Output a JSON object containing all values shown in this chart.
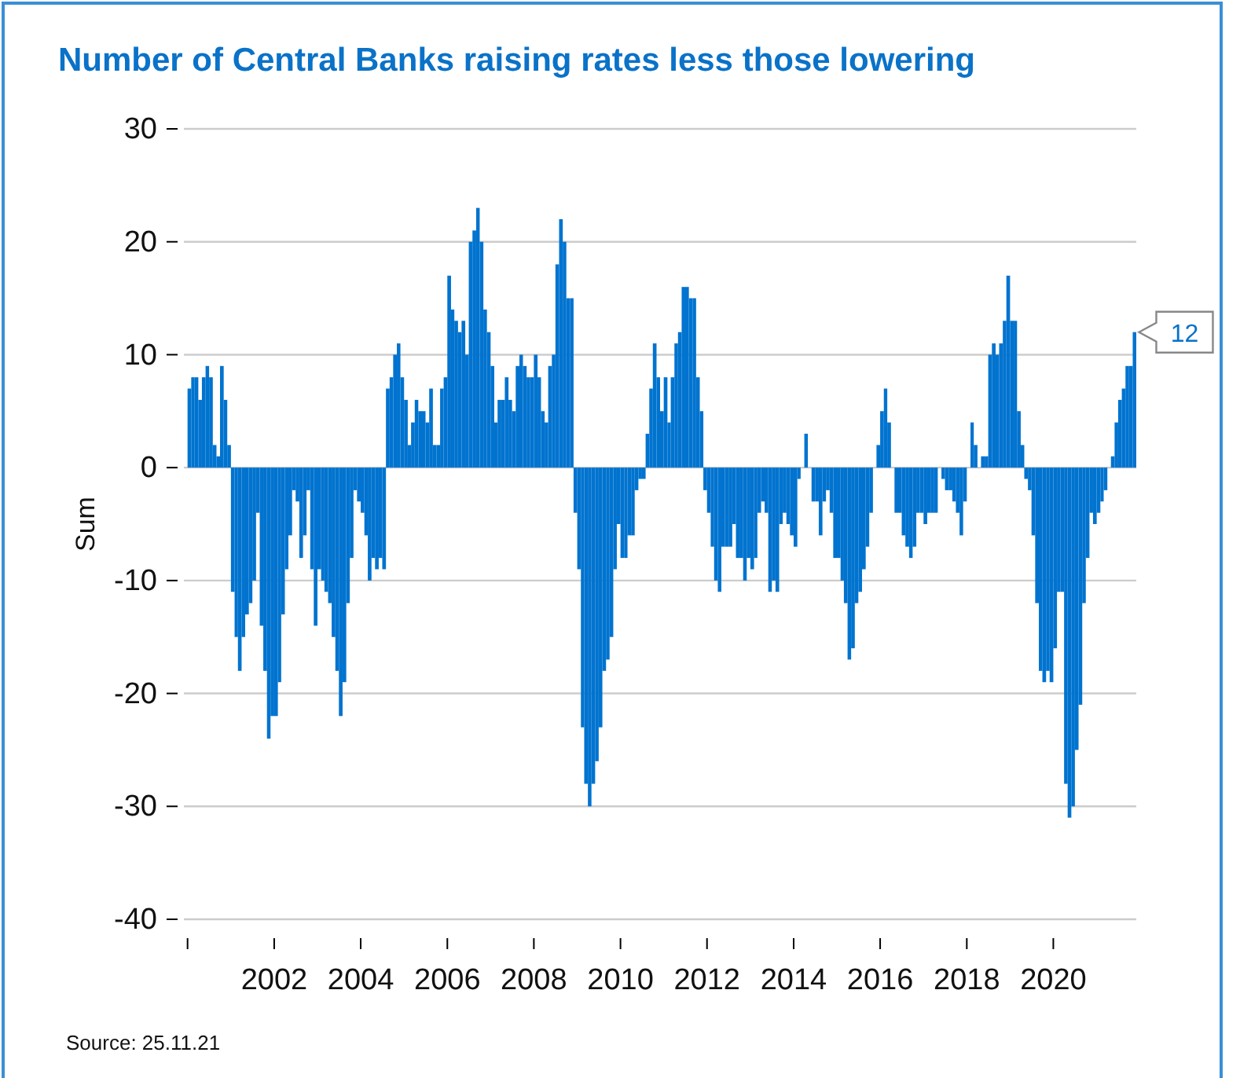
{
  "chart_data": {
    "type": "bar",
    "title": "Number of Central Banks raising rates less those lowering",
    "ylabel": "Sum",
    "annotations": [
      {
        "text": "12",
        "x": "2021-11",
        "y": 12
      },
      "Source: 25.11.21"
    ],
    "x": [
      "2000-01",
      "2000-02",
      "2000-03",
      "2000-04",
      "2000-05",
      "2000-06",
      "2000-07",
      "2000-08",
      "2000-09",
      "2000-10",
      "2000-11",
      "2000-12",
      "2001-01",
      "2001-02",
      "2001-03",
      "2001-04",
      "2001-05",
      "2001-06",
      "2001-07",
      "2001-08",
      "2001-09",
      "2001-10",
      "2001-11",
      "2001-12",
      "2002-01",
      "2002-02",
      "2002-03",
      "2002-04",
      "2002-05",
      "2002-06",
      "2002-07",
      "2002-08",
      "2002-09",
      "2002-10",
      "2002-11",
      "2002-12",
      "2003-01",
      "2003-02",
      "2003-03",
      "2003-04",
      "2003-05",
      "2003-06",
      "2003-07",
      "2003-08",
      "2003-09",
      "2003-10",
      "2003-11",
      "2003-12",
      "2004-01",
      "2004-02",
      "2004-03",
      "2004-04",
      "2004-05",
      "2004-06",
      "2004-07",
      "2004-08",
      "2004-09",
      "2004-10",
      "2004-11",
      "2004-12",
      "2005-01",
      "2005-02",
      "2005-03",
      "2005-04",
      "2005-05",
      "2005-06",
      "2005-07",
      "2005-08",
      "2005-09",
      "2005-10",
      "2005-11",
      "2005-12",
      "2006-01",
      "2006-02",
      "2006-03",
      "2006-04",
      "2006-05",
      "2006-06",
      "2006-07",
      "2006-08",
      "2006-09",
      "2006-10",
      "2006-11",
      "2006-12",
      "2007-01",
      "2007-02",
      "2007-03",
      "2007-04",
      "2007-05",
      "2007-06",
      "2007-07",
      "2007-08",
      "2007-09",
      "2007-10",
      "2007-11",
      "2007-12",
      "2008-01",
      "2008-02",
      "2008-03",
      "2008-04",
      "2008-05",
      "2008-06",
      "2008-07",
      "2008-08",
      "2008-09",
      "2008-10",
      "2008-11",
      "2008-12",
      "2009-01",
      "2009-02",
      "2009-03",
      "2009-04",
      "2009-05",
      "2009-06",
      "2009-07",
      "2009-08",
      "2009-09",
      "2009-10",
      "2009-11",
      "2009-12",
      "2010-01",
      "2010-02",
      "2010-03",
      "2010-04",
      "2010-05",
      "2010-06",
      "2010-07",
      "2010-08",
      "2010-09",
      "2010-10",
      "2010-11",
      "2010-12",
      "2011-01",
      "2011-02",
      "2011-03",
      "2011-04",
      "2011-05",
      "2011-06",
      "2011-07",
      "2011-08",
      "2011-09",
      "2011-10",
      "2011-11",
      "2011-12",
      "2012-01",
      "2012-02",
      "2012-03",
      "2012-04",
      "2012-05",
      "2012-06",
      "2012-07",
      "2012-08",
      "2012-09",
      "2012-10",
      "2012-11",
      "2012-12",
      "2013-01",
      "2013-02",
      "2013-03",
      "2013-04",
      "2013-05",
      "2013-06",
      "2013-07",
      "2013-08",
      "2013-09",
      "2013-10",
      "2013-11",
      "2013-12",
      "2014-01",
      "2014-02",
      "2014-03",
      "2014-04",
      "2014-05",
      "2014-06",
      "2014-07",
      "2014-08",
      "2014-09",
      "2014-10",
      "2014-11",
      "2014-12",
      "2015-01",
      "2015-02",
      "2015-03",
      "2015-04",
      "2015-05",
      "2015-06",
      "2015-07",
      "2015-08",
      "2015-09",
      "2015-10",
      "2015-11",
      "2015-12",
      "2016-01",
      "2016-02",
      "2016-03",
      "2016-04",
      "2016-05",
      "2016-06",
      "2016-07",
      "2016-08",
      "2016-09",
      "2016-10",
      "2016-11",
      "2016-12",
      "2017-01",
      "2017-02",
      "2017-03",
      "2017-04",
      "2017-05",
      "2017-06",
      "2017-07",
      "2017-08",
      "2017-09",
      "2017-10",
      "2017-11",
      "2017-12",
      "2018-01",
      "2018-02",
      "2018-03",
      "2018-04",
      "2018-05",
      "2018-06",
      "2018-07",
      "2018-08",
      "2018-09",
      "2018-10",
      "2018-11",
      "2018-12",
      "2019-01",
      "2019-02",
      "2019-03",
      "2019-04",
      "2019-05",
      "2019-06",
      "2019-07",
      "2019-08",
      "2019-09",
      "2019-10",
      "2019-11",
      "2019-12",
      "2020-01",
      "2020-02",
      "2020-03",
      "2020-04",
      "2020-05",
      "2020-06",
      "2020-07",
      "2020-08",
      "2020-09",
      "2020-10",
      "2020-11",
      "2020-12",
      "2021-01",
      "2021-02",
      "2021-03",
      "2021-04",
      "2021-05",
      "2021-06",
      "2021-07",
      "2021-08",
      "2021-09",
      "2021-10",
      "2021-11"
    ],
    "color": "#0073cf",
    "values": [
      7,
      8,
      8,
      6,
      8,
      9,
      8,
      2,
      1,
      9,
      6,
      2,
      -11,
      -15,
      -18,
      -15,
      -13,
      -12,
      -10,
      -4,
      -14,
      -18,
      -24,
      -22,
      -22,
      -19,
      -13,
      -9,
      -6,
      -2,
      -3,
      -8,
      -6,
      -2,
      -9,
      -14,
      -9,
      -10,
      -11,
      -12,
      -15,
      -18,
      -22,
      -19,
      -12,
      -8,
      -2,
      -3,
      -4,
      -6,
      -10,
      -8,
      -9,
      -8,
      -9,
      7,
      8,
      10,
      11,
      8,
      6,
      2,
      4,
      6,
      5,
      5,
      4,
      7,
      2,
      2,
      7,
      8,
      17,
      14,
      13,
      12,
      13,
      10,
      20,
      21,
      23,
      20,
      14,
      12,
      9,
      4,
      6,
      6,
      8,
      6,
      5,
      9,
      10,
      9,
      8,
      8,
      10,
      8,
      5,
      4,
      9,
      10,
      18,
      22,
      20,
      15,
      15,
      -4,
      -9,
      -23,
      -28,
      -30,
      -28,
      -26,
      -23,
      -18,
      -17,
      -15,
      -9,
      -5,
      -8,
      -8,
      -6,
      -6,
      -2,
      -1,
      -1,
      3,
      7,
      11,
      8,
      5,
      8,
      4,
      8,
      11,
      12,
      16,
      16,
      15,
      15,
      8,
      5,
      -2,
      -4,
      -7,
      -10,
      -11,
      -7,
      -7,
      -7,
      -5,
      -8,
      -8,
      -10,
      -8,
      -9,
      -8,
      -4,
      -3,
      -4,
      -11,
      -10,
      -11,
      -5,
      -4,
      -5,
      -6,
      -7,
      -1,
      0,
      3,
      0,
      -3,
      -3,
      -6,
      -3,
      -2,
      -4,
      -8,
      -8,
      -10,
      -12,
      -17,
      -16,
      -12,
      -11,
      -9,
      -7,
      -4,
      0,
      2,
      5,
      7,
      4,
      0,
      -4,
      -4,
      -6,
      -7,
      -8,
      -7,
      -4,
      -4,
      -5,
      -4,
      -4,
      -4,
      0,
      -1,
      -2,
      -2,
      -3,
      -4,
      -6,
      -3,
      0,
      4,
      2,
      0,
      1,
      1,
      10,
      11,
      10,
      11,
      13,
      17,
      13,
      13,
      5,
      2,
      -1,
      -2,
      -6,
      -12,
      -18,
      -19,
      -18,
      -19,
      -16,
      -11,
      -11,
      -28,
      -31,
      -30,
      -25,
      -21,
      -12,
      -8,
      -4,
      -5,
      -4,
      -3,
      -2,
      0,
      1,
      4,
      6,
      7,
      9,
      9,
      12
    ],
    "xlim": [
      "1999-12",
      "2021-12"
    ],
    "xticks": [
      {
        "value": "2000",
        "label": null
      },
      {
        "value": "2002",
        "label": "2002"
      },
      {
        "value": "2004",
        "label": "2004"
      },
      {
        "value": "2006",
        "label": "2006"
      },
      {
        "value": "2008",
        "label": "2008"
      },
      {
        "value": "2010",
        "label": "2010"
      },
      {
        "value": "2012",
        "label": "2012"
      },
      {
        "value": "2014",
        "label": "2014"
      },
      {
        "value": "2016",
        "label": "2016"
      },
      {
        "value": "2018",
        "label": "2018"
      },
      {
        "value": "2020",
        "label": "2020"
      }
    ],
    "ylim": [
      -40,
      30
    ],
    "yticks": [
      -40,
      -30,
      -20,
      -10,
      0,
      10,
      20,
      30
    ],
    "grid": "y"
  }
}
